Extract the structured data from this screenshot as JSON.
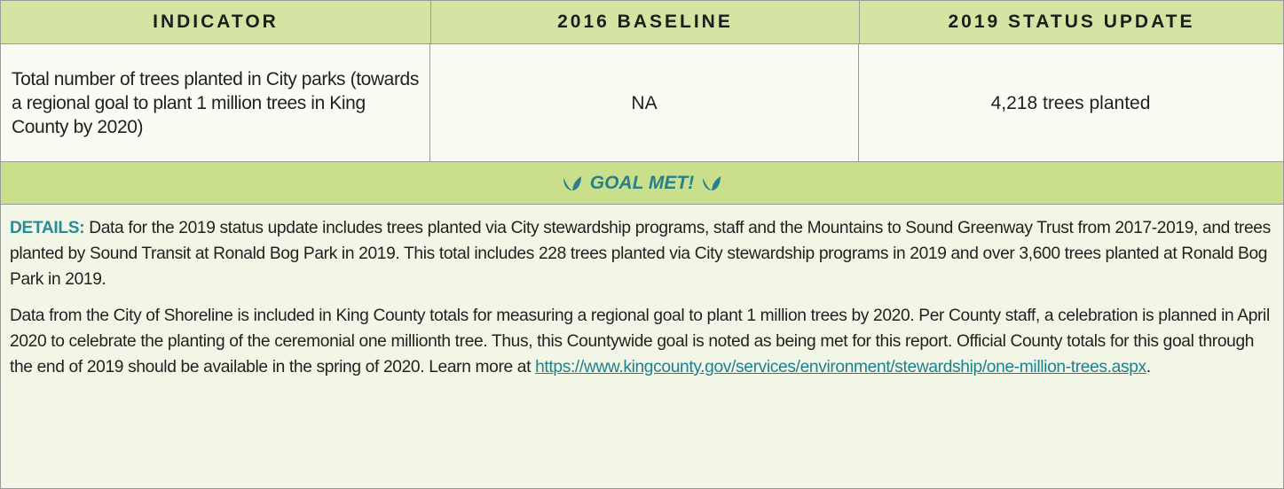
{
  "table": {
    "headers": [
      "INDICATOR",
      "2016 BASELINE",
      "2019 STATUS UPDATE"
    ],
    "rows": [
      [
        "Total number of trees planted in City parks (towards a regional goal to plant 1 million trees in King County by 2020)",
        "NA",
        "4,218 trees planted"
      ]
    ],
    "status": "GOAL MET!"
  },
  "details": {
    "label": "DETAILS:",
    "paragraphs": [
      "Data for the 2019 status update includes trees planted via City stewardship programs, staff and the Mountains to Sound Greenway Trust from 2017-2019, and trees planted by Sound Transit at Ronald Bog Park in 2019. This total includes 228 trees planted via City stewardship programs in 2019 and over 3,600 trees planted at Ronald Bog Park in 2019.",
      "Data from the City of Shoreline is included in King County totals for measuring a regional goal to plant 1 million trees by 2020. Per County staff, a celebration is planned in April 2020 to celebrate the planting of the ceremonial one millionth tree. Thus, this Countywide goal is noted as being met for this report. Official County totals for this goal through the end of 2019 should be available in the spring of 2020. Learn more at"
    ],
    "link": "https://www.kingcounty.gov/services/environment/stewardship/one-million-trees.aspx",
    "link_end": "."
  }
}
